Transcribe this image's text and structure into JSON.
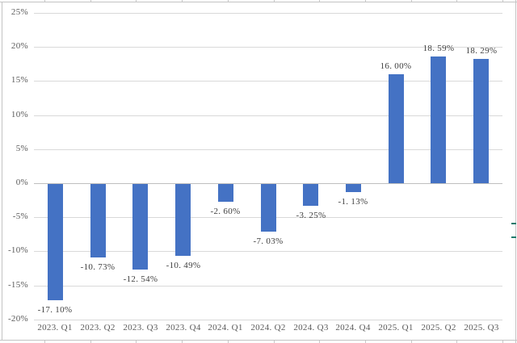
{
  "window": {
    "background": "#FFFFFF"
  },
  "chart_data": {
    "type": "bar",
    "title": "",
    "xlabel": "",
    "ylabel": "",
    "categories": [
      "2023. Q1",
      "2023. Q2",
      "2023. Q3",
      "2023. Q4",
      "2024. Q1",
      "2024. Q2",
      "2024. Q3",
      "2024. Q4",
      "2025. Q1",
      "2025. Q2",
      "2025. Q3"
    ],
    "values": [
      -17.1,
      -10.73,
      -12.54,
      -10.49,
      -2.6,
      -7.03,
      -3.25,
      -1.13,
      16.0,
      18.59,
      18.29
    ],
    "data_labels": [
      "-17. 10%",
      "-10. 73%",
      "-12. 54%",
      "-10. 49%",
      "-2. 60%",
      "-7. 03%",
      "-3. 25%",
      "-1. 13%",
      "16. 00%",
      "18. 59%",
      "18. 29%"
    ],
    "ytick_values": [
      25,
      20,
      15,
      10,
      5,
      0,
      -5,
      -10,
      -15,
      -20
    ],
    "ytick_labels": [
      "25%",
      "20%",
      "15%",
      "10%",
      "5%",
      "0%",
      "-5%",
      "-10%",
      "-15%",
      "-20%"
    ],
    "ylim": [
      -20,
      25
    ],
    "grid": true,
    "legend": false,
    "colors": {
      "bar": "#4472C4",
      "gridline": "#D9D9D9",
      "zero_line": "#BFBFBF",
      "tick_label": "#595959",
      "data_label": "#3F3F3F",
      "frame_line": "#C3C3C3",
      "frame_tick": "#C8C8C8",
      "handle": "#1E7A6C"
    }
  }
}
